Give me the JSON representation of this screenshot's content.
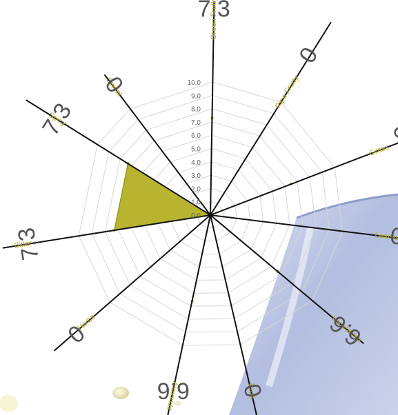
{
  "chart_data": {
    "type": "radar",
    "categories": [
      "Green Frutty",
      "Ripe Frutty",
      "Grass",
      "Leaves",
      "Vegetables",
      "Fruit",
      "Almonds",
      "Herbs",
      "Bitter",
      "Spicy",
      "Sweet"
    ],
    "values": [
      7.3,
      0,
      6.5,
      0,
      6.6,
      0,
      6.6,
      0,
      7.3,
      7.3,
      0
    ],
    "value_labels": [
      "7.3",
      "0",
      "6.5",
      "0",
      "6.6",
      "0",
      "6.6",
      "0",
      "7.3",
      "7.3",
      "0"
    ],
    "scale_ticks": [
      "0,0",
      "1,0",
      "2,0",
      "3,0",
      "4,0",
      "5,0",
      "6,0",
      "7,0",
      "8,0",
      "9,0",
      "10,0"
    ],
    "range": [
      0,
      10
    ],
    "grid": true,
    "colors": {
      "fill": "#b8b42f",
      "edge": "#9a9626",
      "label": "#b3ab2c",
      "grid": "#d6d6d6",
      "spoke": "#111111",
      "value_text": "#555555",
      "tick_text": "#666666"
    }
  }
}
